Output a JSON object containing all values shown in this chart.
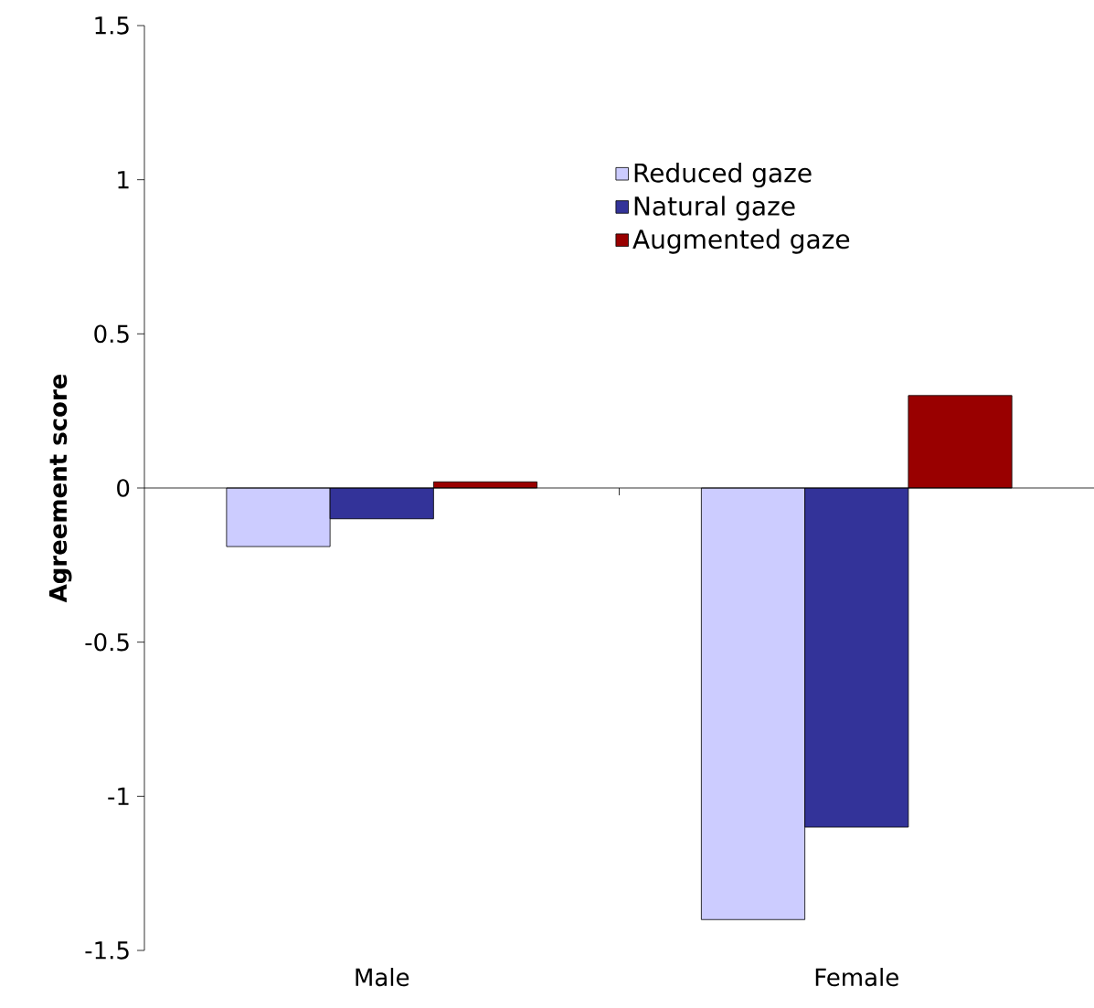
{
  "chart_data": {
    "type": "bar",
    "ylabel": "Agreement score",
    "categories": [
      "Male",
      "Female"
    ],
    "series": [
      {
        "name": "Reduced gaze",
        "color": "#ccccff",
        "values": [
          -0.19,
          -1.4
        ]
      },
      {
        "name": "Natural gaze",
        "color": "#333399",
        "values": [
          -0.1,
          -1.1
        ]
      },
      {
        "name": "Augmented gaze",
        "color": "#990000",
        "values": [
          0.02,
          0.3
        ]
      }
    ],
    "ylim": [
      -1.5,
      1.5
    ],
    "yticks": [
      -1.5,
      -1,
      -0.5,
      0,
      0.5,
      1,
      1.5
    ],
    "legend": "top right"
  }
}
